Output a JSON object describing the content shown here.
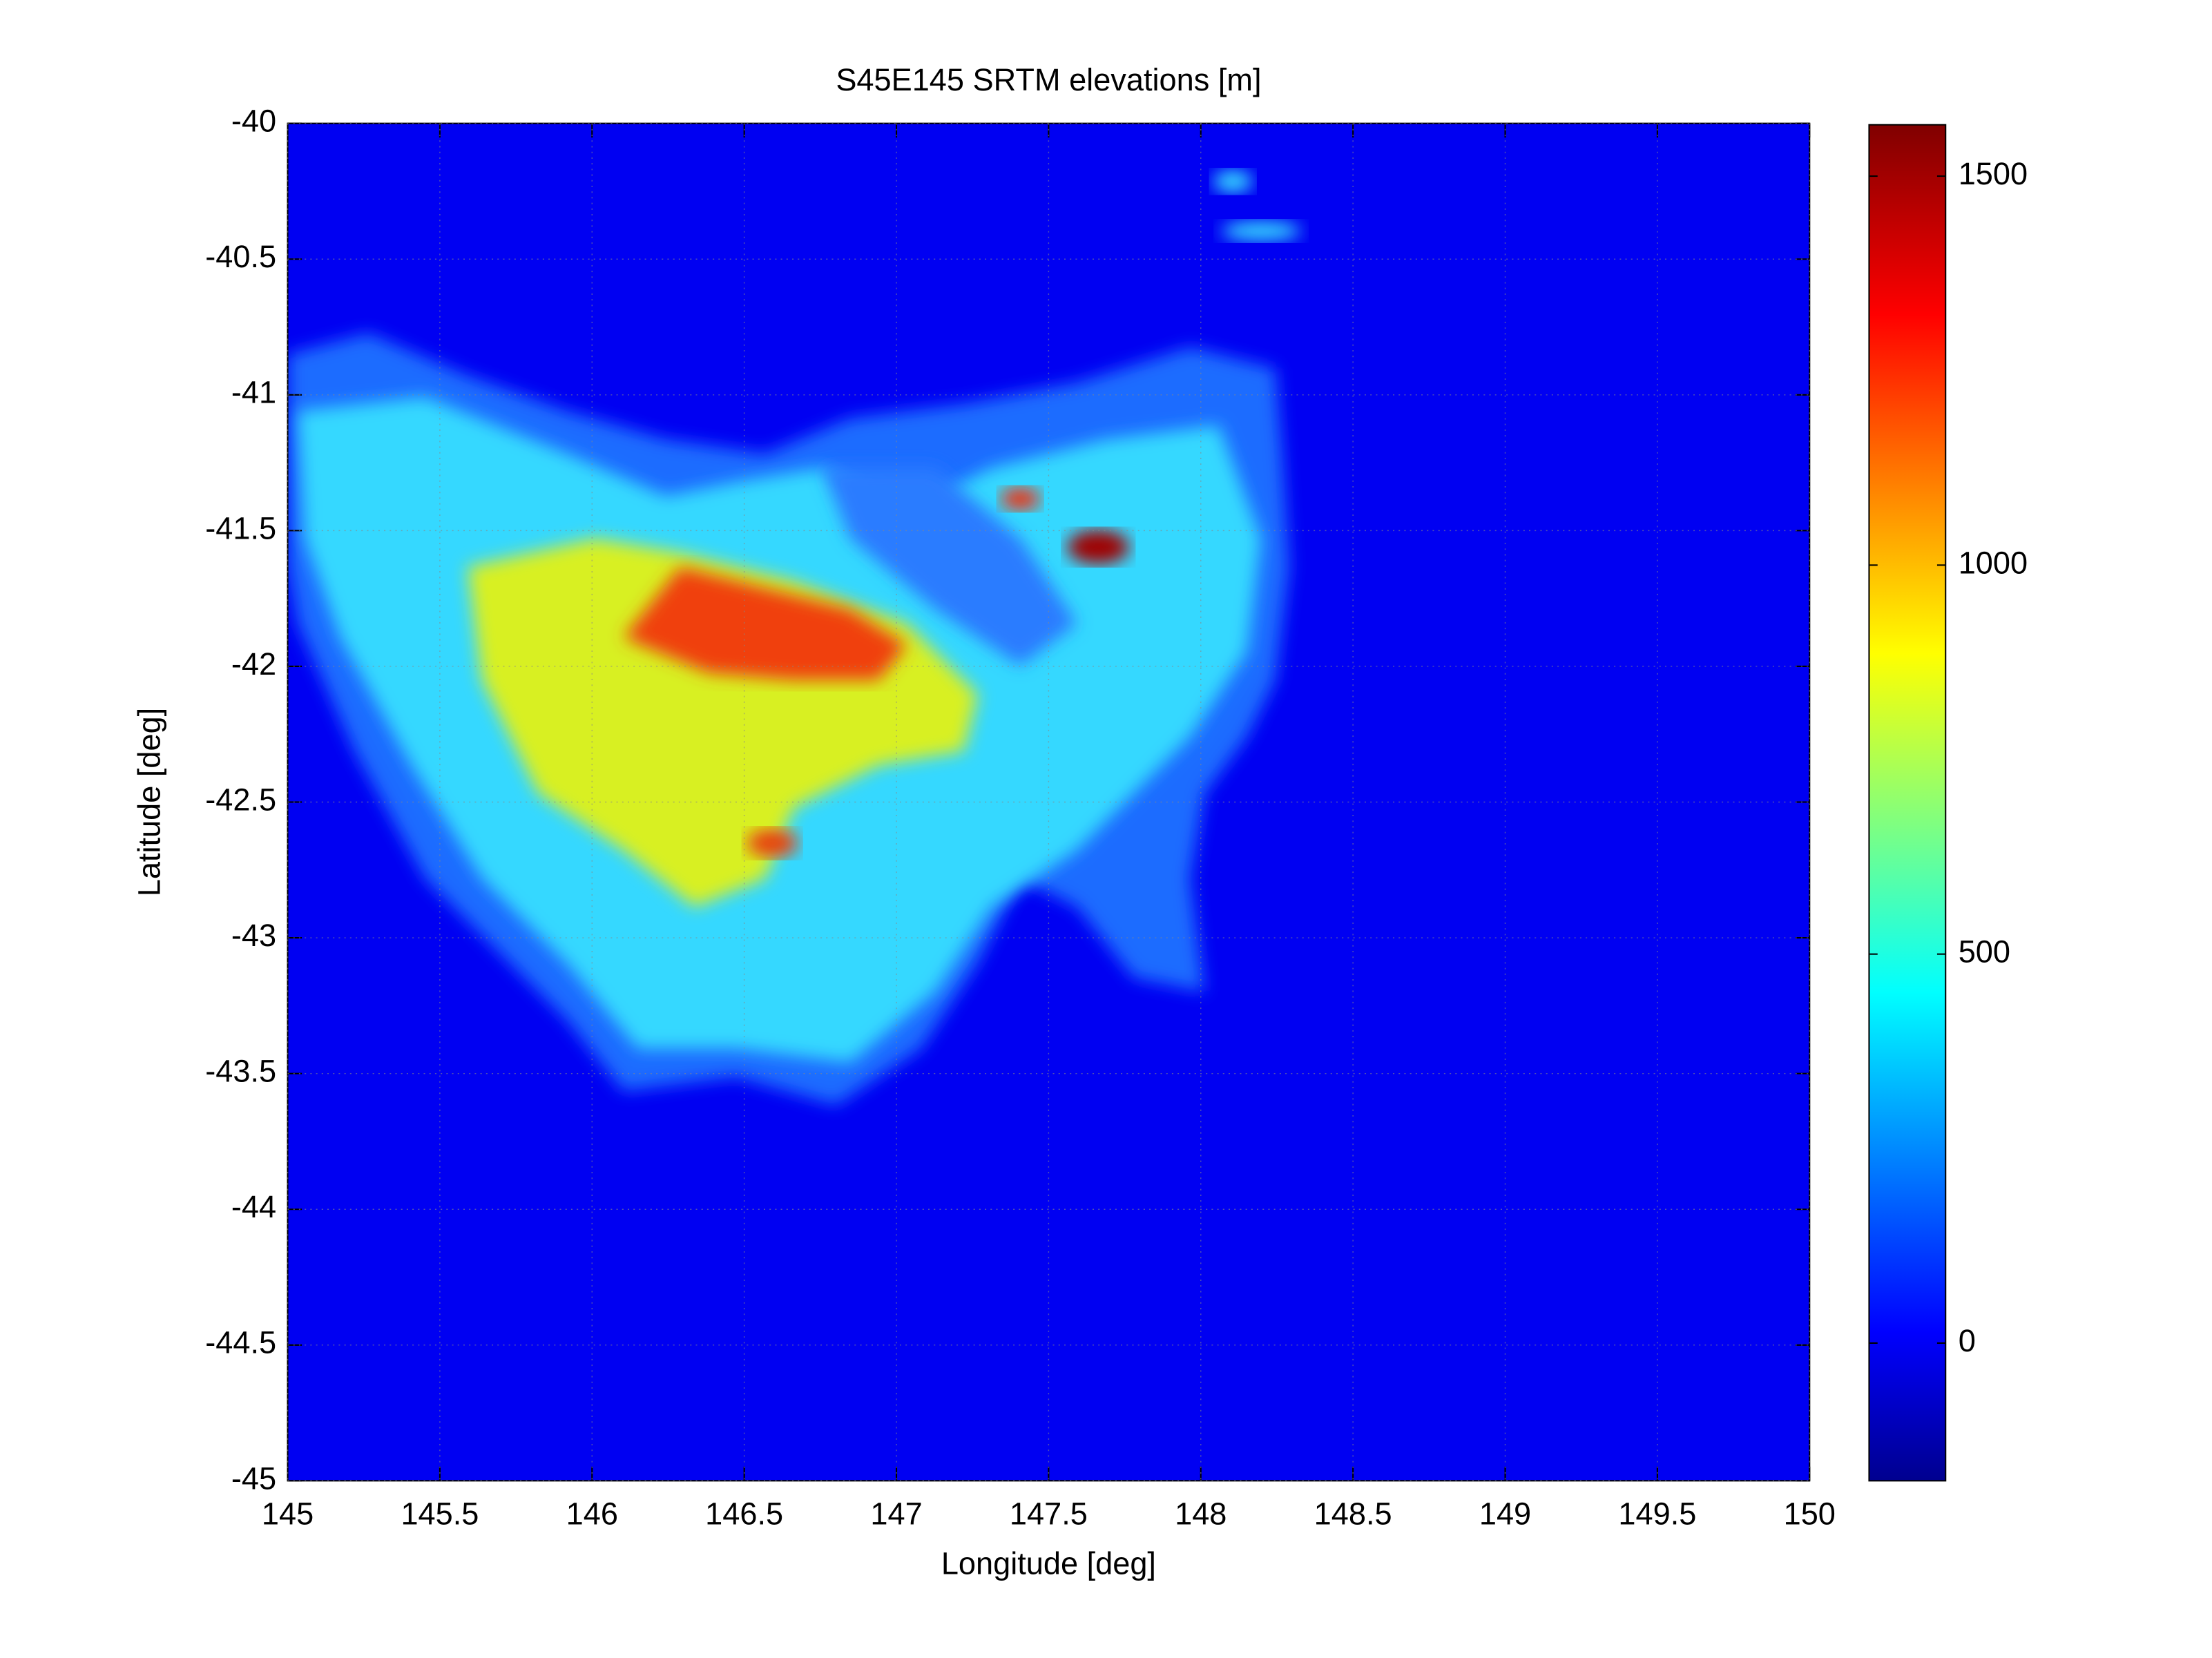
{
  "chart_data": {
    "type": "heatmap",
    "title": "S45E145 SRTM elevations [m]",
    "x_label": "Longitude [deg]",
    "y_label": "Latitude [deg]",
    "xlim": [
      145,
      150
    ],
    "ylim": [
      -45,
      -40
    ],
    "xticks": [
      145,
      145.5,
      146,
      146.5,
      147,
      147.5,
      148,
      148.5,
      149,
      149.5,
      150
    ],
    "yticks": [
      -40,
      -40.5,
      -41,
      -41.5,
      -42,
      -42.5,
      -43,
      -43.5,
      -44,
      -44.5,
      -45
    ],
    "grid": true,
    "colormap": "jet",
    "clim": [
      -177,
      1566
    ],
    "colorbar_ticks": [
      0,
      500,
      1000,
      1500
    ]
  }
}
